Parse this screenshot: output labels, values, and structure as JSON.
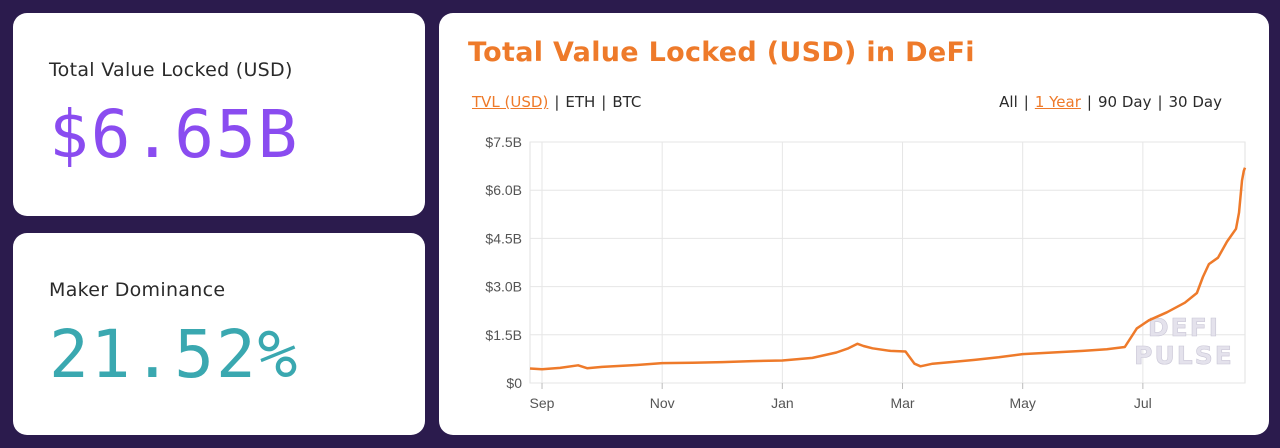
{
  "tvl_card": {
    "label": "Total Value Locked (USD)",
    "value": "$6.65B"
  },
  "maker_card": {
    "label": "Maker Dominance",
    "value": "21.52%"
  },
  "chart_card": {
    "title": "Total Value Locked (USD) in DeFi",
    "currency_toggles": [
      {
        "label": "TVL (USD)",
        "active": true
      },
      {
        "label": "ETH",
        "active": false
      },
      {
        "label": "BTC",
        "active": false
      }
    ],
    "range_toggles": [
      {
        "label": "All",
        "active": false
      },
      {
        "label": "1 Year",
        "active": true
      },
      {
        "label": "90 Day",
        "active": false
      },
      {
        "label": "30 Day",
        "active": false
      }
    ],
    "watermark": [
      "DEFI",
      "PULSE"
    ]
  },
  "colors": {
    "accent": "#ee7a2a",
    "purple": "#8a4cf0",
    "teal": "#3aa8b0",
    "background": "#2b1b4d"
  },
  "chart_data": {
    "type": "line",
    "title": "Total Value Locked (USD) in DeFi",
    "xlabel": "",
    "ylabel": "",
    "ylim": [
      0,
      7.5
    ],
    "y_ticks": [
      0,
      1.5,
      3.0,
      4.5,
      6.0,
      7.5
    ],
    "y_tick_labels": [
      "$0",
      "$1.5B",
      "$3.0B",
      "$4.5B",
      "$6.0B",
      "$7.5B"
    ],
    "x_tick_labels": [
      "Sep",
      "Nov",
      "Jan",
      "Mar",
      "May",
      "Jul"
    ],
    "x_ticks": [
      1,
      3,
      5,
      7,
      9,
      11
    ],
    "xlim": [
      0.8,
      12.7
    ],
    "grid": true,
    "series": [
      {
        "color": "#ee7a2a",
        "points": [
          [
            0.8,
            0.45
          ],
          [
            1.0,
            0.43
          ],
          [
            1.3,
            0.47
          ],
          [
            1.6,
            0.55
          ],
          [
            1.75,
            0.46
          ],
          [
            2.0,
            0.5
          ],
          [
            2.5,
            0.55
          ],
          [
            3.0,
            0.62
          ],
          [
            3.5,
            0.63
          ],
          [
            4.0,
            0.65
          ],
          [
            4.5,
            0.68
          ],
          [
            5.0,
            0.7
          ],
          [
            5.5,
            0.78
          ],
          [
            5.9,
            0.95
          ],
          [
            6.1,
            1.08
          ],
          [
            6.25,
            1.22
          ],
          [
            6.35,
            1.15
          ],
          [
            6.5,
            1.08
          ],
          [
            6.8,
            1.0
          ],
          [
            7.05,
            0.98
          ],
          [
            7.2,
            0.6
          ],
          [
            7.3,
            0.52
          ],
          [
            7.5,
            0.6
          ],
          [
            7.8,
            0.65
          ],
          [
            8.2,
            0.72
          ],
          [
            8.6,
            0.8
          ],
          [
            9.0,
            0.9
          ],
          [
            9.5,
            0.95
          ],
          [
            10.0,
            1.0
          ],
          [
            10.4,
            1.05
          ],
          [
            10.7,
            1.12
          ],
          [
            10.9,
            1.7
          ],
          [
            11.1,
            1.95
          ],
          [
            11.4,
            2.2
          ],
          [
            11.7,
            2.5
          ],
          [
            11.9,
            2.8
          ],
          [
            12.0,
            3.3
          ],
          [
            12.1,
            3.7
          ],
          [
            12.25,
            3.9
          ],
          [
            12.4,
            4.4
          ],
          [
            12.55,
            4.8
          ],
          [
            12.6,
            5.3
          ],
          [
            12.65,
            6.3
          ],
          [
            12.68,
            6.6
          ],
          [
            12.7,
            6.7
          ]
        ]
      }
    ]
  }
}
